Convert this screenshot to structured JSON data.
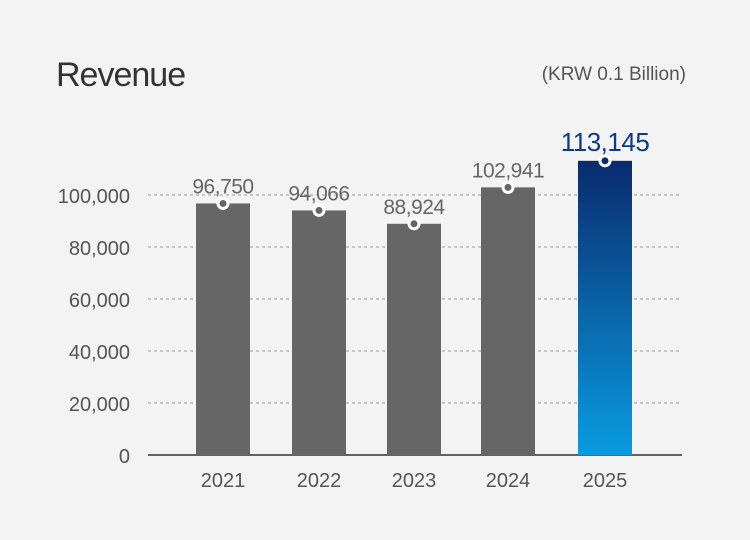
{
  "title": "Revenue",
  "unit": "(KRW 0.1 Billion)",
  "chart_data": {
    "type": "bar",
    "title": "Revenue",
    "ylabel": "",
    "xlabel": "",
    "categories": [
      "2021",
      "2022",
      "2023",
      "2024",
      "2025"
    ],
    "values": [
      96750,
      94066,
      88924,
      102941,
      113145
    ],
    "value_labels": [
      "96,750",
      "94,066",
      "88,924",
      "102,941",
      "113,145"
    ],
    "yticks": [
      0,
      20000,
      40000,
      60000,
      80000,
      100000
    ],
    "ytick_labels": [
      "0",
      "20,000",
      "40,000",
      "60,000",
      "80,000",
      "100,000"
    ],
    "ylim": [
      0,
      100000
    ],
    "grid": true,
    "colors": {
      "bar": "#666666",
      "highlight_top": "#0a2b6e",
      "highlight_bottom": "#0a9be0",
      "highlight_label": "#0b3a8c",
      "label": "#666666"
    }
  }
}
